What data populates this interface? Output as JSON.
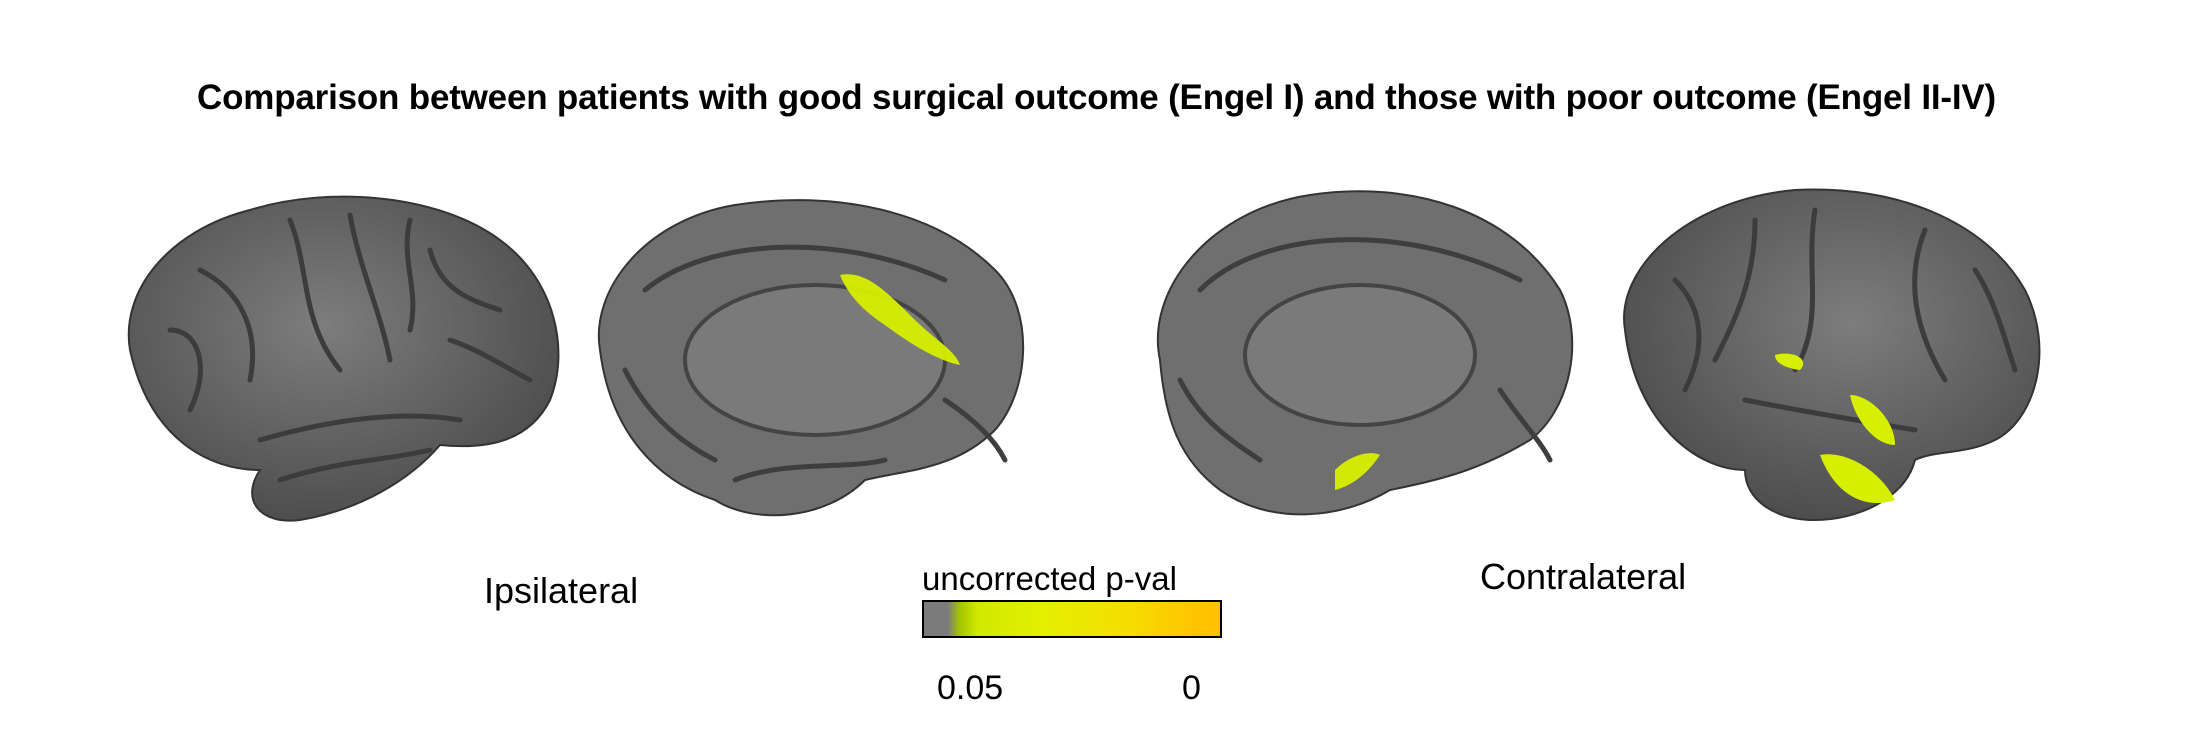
{
  "title": "Comparison between patients with good surgical outcome (Engel I) and those with poor outcome (Engel II-IV)",
  "labels": {
    "ipsilateral": "Ipsilateral",
    "contralateral": "Contralateral"
  },
  "colorbar": {
    "title": "uncorrected p-val",
    "tick_low": "0.05",
    "tick_high": "0",
    "colors": {
      "background": "#7b7b7b",
      "low": "#bfe600",
      "high": "#ffc000"
    }
  },
  "colors": {
    "cortex": "#6e6e6e",
    "cortex_dark": "#3f3f3f",
    "highlight": "#d7ef00"
  }
}
